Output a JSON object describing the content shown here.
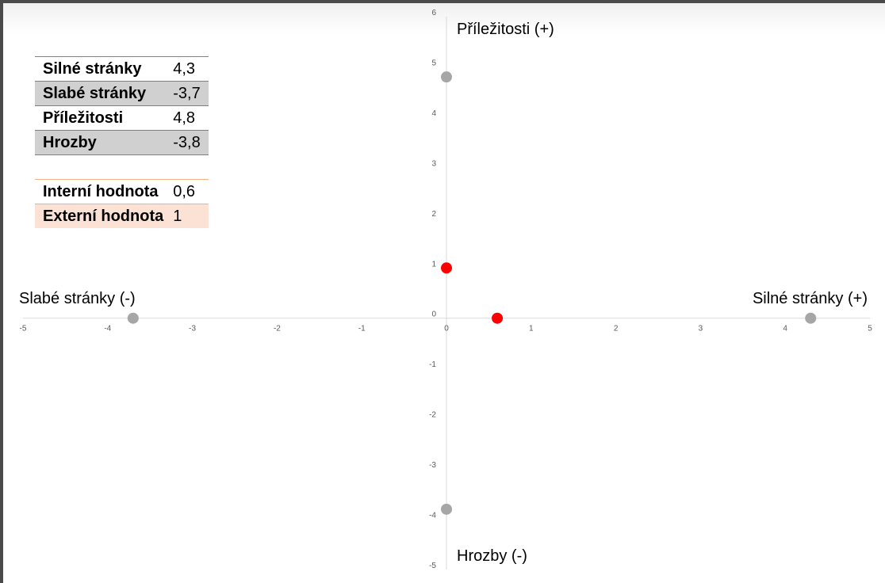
{
  "chart_data": {
    "type": "scatter",
    "title": "",
    "xlim": [
      -5,
      5
    ],
    "ylim": [
      -5,
      6
    ],
    "x_ticks": [
      "-5",
      "-4",
      "-3",
      "-2",
      "-1",
      "0",
      "1",
      "2",
      "3",
      "4",
      "5"
    ],
    "y_ticks": [
      "-5",
      "-4",
      "-3",
      "-2",
      "-1",
      "0",
      "1",
      "2",
      "3",
      "4",
      "5",
      "6"
    ],
    "axis_titles": {
      "x_positive": "Silné stránky (+)",
      "x_negative": "Slabé stránky (-)",
      "y_positive": "Příležitosti (+)",
      "y_negative": "Hrozby (-)"
    },
    "grid": false,
    "series": [
      {
        "color": "#a6a6a6",
        "points": [
          {
            "x": 4.3,
            "y": 0
          },
          {
            "x": -3.7,
            "y": 0
          },
          {
            "x": 0,
            "y": 4.8
          },
          {
            "x": 0,
            "y": -3.8
          }
        ]
      },
      {
        "color": "#ff0000",
        "points": [
          {
            "x": 0.6,
            "y": 0
          },
          {
            "x": 0,
            "y": 1
          }
        ]
      }
    ]
  },
  "summary_table": {
    "rows": [
      {
        "label": "Silné stránky",
        "value": "4,3"
      },
      {
        "label": "Slabé stránky",
        "value": "-3,7"
      },
      {
        "label": "Příležitosti",
        "value": "4,8"
      },
      {
        "label": "Hrozby",
        "value": "-3,8"
      }
    ],
    "results": [
      {
        "label": "Interní hodnota",
        "value": "0,6"
      },
      {
        "label": "Externí hodnota",
        "value": "1"
      }
    ]
  }
}
